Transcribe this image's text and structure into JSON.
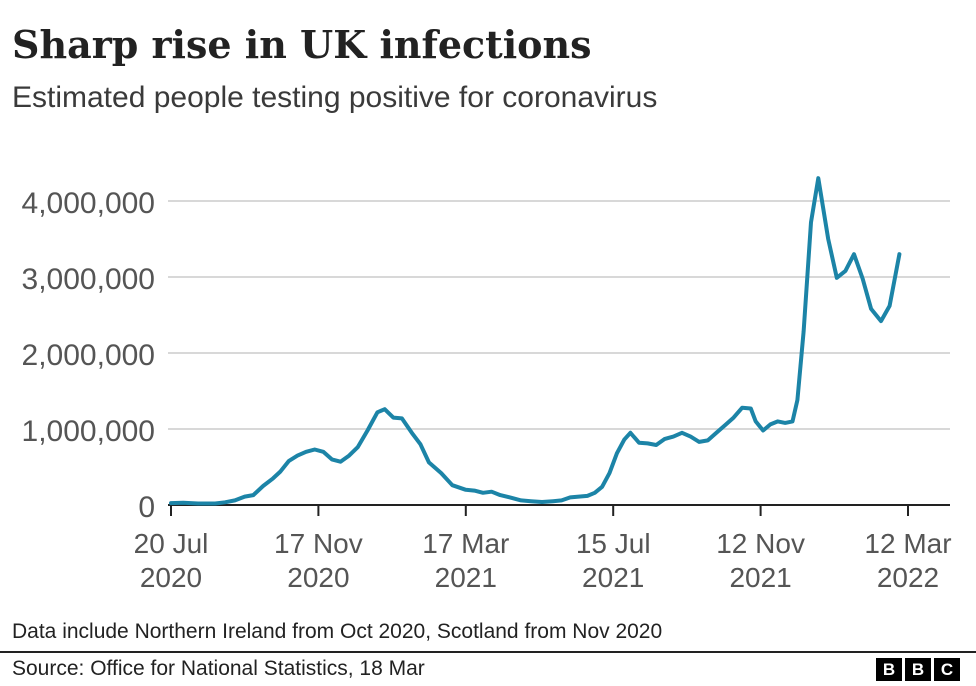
{
  "header": {
    "title": "Sharp rise in UK infections",
    "subtitle": "Estimated people testing positive for coronavirus"
  },
  "footer": {
    "note": "Data include Northern Ireland from Oct 2020, Scotland from Nov 2020",
    "source": "Source: Office for National Statistics, 18 Mar",
    "logo_letters": [
      "B",
      "B",
      "C"
    ]
  },
  "colors": {
    "line": "#1c84a7",
    "gridline": "#cccccc",
    "axis": "#222222",
    "text": "#222222",
    "tick_text": "#555555"
  },
  "chart_data": {
    "type": "line",
    "title": "Sharp rise in UK infections",
    "subtitle": "Estimated people testing positive for coronavirus",
    "xlabel": "",
    "ylabel": "",
    "ylim": [
      0,
      4300000
    ],
    "xlim": [
      "2020-07-20",
      "2022-03-12"
    ],
    "grid": true,
    "y_ticks": [
      {
        "value": 0,
        "label": "0"
      },
      {
        "value": 1000000,
        "label": "1,000,000"
      },
      {
        "value": 2000000,
        "label": "2,000,000"
      },
      {
        "value": 3000000,
        "label": "3,000,000"
      },
      {
        "value": 4000000,
        "label": "4,000,000"
      }
    ],
    "x_ticks": [
      {
        "date": "2020-07-20",
        "line1": "20 Jul",
        "line2": "2020"
      },
      {
        "date": "2020-11-17",
        "line1": "17 Nov",
        "line2": "2020"
      },
      {
        "date": "2021-03-17",
        "line1": "17 Mar",
        "line2": "2021"
      },
      {
        "date": "2021-07-15",
        "line1": "15 Jul",
        "line2": "2021"
      },
      {
        "date": "2021-11-12",
        "line1": "12 Nov",
        "line2": "2021"
      },
      {
        "date": "2022-03-12",
        "line1": "12 Mar",
        "line2": "2022"
      }
    ],
    "series": [
      {
        "color": "#1c84a7",
        "points": [
          {
            "x": "2020-07-20",
            "y": 25000
          },
          {
            "x": "2020-07-30",
            "y": 30000
          },
          {
            "x": "2020-08-11",
            "y": 20000
          },
          {
            "x": "2020-08-25",
            "y": 20000
          },
          {
            "x": "2020-09-02",
            "y": 35000
          },
          {
            "x": "2020-09-10",
            "y": 60000
          },
          {
            "x": "2020-09-18",
            "y": 110000
          },
          {
            "x": "2020-09-25",
            "y": 130000
          },
          {
            "x": "2020-10-03",
            "y": 250000
          },
          {
            "x": "2020-10-11",
            "y": 350000
          },
          {
            "x": "2020-10-17",
            "y": 440000
          },
          {
            "x": "2020-10-24",
            "y": 580000
          },
          {
            "x": "2020-10-31",
            "y": 650000
          },
          {
            "x": "2020-11-07",
            "y": 700000
          },
          {
            "x": "2020-11-14",
            "y": 730000
          },
          {
            "x": "2020-11-21",
            "y": 700000
          },
          {
            "x": "2020-11-28",
            "y": 600000
          },
          {
            "x": "2020-12-05",
            "y": 570000
          },
          {
            "x": "2020-12-12",
            "y": 650000
          },
          {
            "x": "2020-12-19",
            "y": 760000
          },
          {
            "x": "2020-12-27",
            "y": 980000
          },
          {
            "x": "2021-01-04",
            "y": 1220000
          },
          {
            "x": "2021-01-10",
            "y": 1260000
          },
          {
            "x": "2021-01-17",
            "y": 1150000
          },
          {
            "x": "2021-01-24",
            "y": 1140000
          },
          {
            "x": "2021-02-01",
            "y": 950000
          },
          {
            "x": "2021-02-08",
            "y": 800000
          },
          {
            "x": "2021-02-15",
            "y": 560000
          },
          {
            "x": "2021-02-25",
            "y": 420000
          },
          {
            "x": "2021-03-06",
            "y": 260000
          },
          {
            "x": "2021-03-17",
            "y": 200000
          },
          {
            "x": "2021-03-24",
            "y": 190000
          },
          {
            "x": "2021-03-31",
            "y": 160000
          },
          {
            "x": "2021-04-07",
            "y": 175000
          },
          {
            "x": "2021-04-14",
            "y": 130000
          },
          {
            "x": "2021-04-22",
            "y": 100000
          },
          {
            "x": "2021-05-01",
            "y": 60000
          },
          {
            "x": "2021-05-09",
            "y": 50000
          },
          {
            "x": "2021-05-18",
            "y": 40000
          },
          {
            "x": "2021-05-27",
            "y": 50000
          },
          {
            "x": "2021-06-03",
            "y": 60000
          },
          {
            "x": "2021-06-10",
            "y": 100000
          },
          {
            "x": "2021-06-17",
            "y": 110000
          },
          {
            "x": "2021-06-24",
            "y": 120000
          },
          {
            "x": "2021-06-30",
            "y": 160000
          },
          {
            "x": "2021-07-06",
            "y": 240000
          },
          {
            "x": "2021-07-12",
            "y": 420000
          },
          {
            "x": "2021-07-18",
            "y": 680000
          },
          {
            "x": "2021-07-24",
            "y": 860000
          },
          {
            "x": "2021-07-29",
            "y": 950000
          },
          {
            "x": "2021-08-05",
            "y": 820000
          },
          {
            "x": "2021-08-12",
            "y": 810000
          },
          {
            "x": "2021-08-19",
            "y": 790000
          },
          {
            "x": "2021-08-26",
            "y": 870000
          },
          {
            "x": "2021-09-02",
            "y": 900000
          },
          {
            "x": "2021-09-09",
            "y": 950000
          },
          {
            "x": "2021-09-16",
            "y": 900000
          },
          {
            "x": "2021-09-23",
            "y": 830000
          },
          {
            "x": "2021-09-30",
            "y": 850000
          },
          {
            "x": "2021-10-07",
            "y": 950000
          },
          {
            "x": "2021-10-14",
            "y": 1050000
          },
          {
            "x": "2021-10-21",
            "y": 1150000
          },
          {
            "x": "2021-10-28",
            "y": 1280000
          },
          {
            "x": "2021-11-04",
            "y": 1270000
          },
          {
            "x": "2021-11-08",
            "y": 1100000
          },
          {
            "x": "2021-11-14",
            "y": 980000
          },
          {
            "x": "2021-11-20",
            "y": 1060000
          },
          {
            "x": "2021-11-26",
            "y": 1100000
          },
          {
            "x": "2021-12-02",
            "y": 1080000
          },
          {
            "x": "2021-12-08",
            "y": 1100000
          },
          {
            "x": "2021-12-12",
            "y": 1380000
          },
          {
            "x": "2021-12-17",
            "y": 2280000
          },
          {
            "x": "2021-12-23",
            "y": 3720000
          },
          {
            "x": "2021-12-29",
            "y": 4300000
          },
          {
            "x": "2022-01-06",
            "y": 3500000
          },
          {
            "x": "2022-01-13",
            "y": 2990000
          },
          {
            "x": "2022-01-20",
            "y": 3080000
          },
          {
            "x": "2022-01-27",
            "y": 3300000
          },
          {
            "x": "2022-02-03",
            "y": 2980000
          },
          {
            "x": "2022-02-10",
            "y": 2580000
          },
          {
            "x": "2022-02-18",
            "y": 2420000
          },
          {
            "x": "2022-02-25",
            "y": 2620000
          },
          {
            "x": "2022-03-05",
            "y": 3300000
          }
        ]
      }
    ]
  }
}
